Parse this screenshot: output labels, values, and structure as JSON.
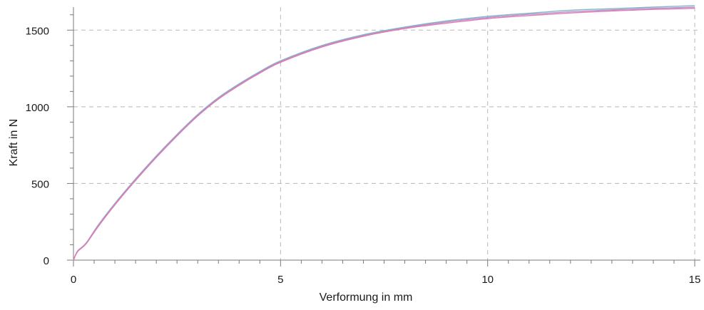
{
  "chart_data": {
    "type": "line",
    "title": "",
    "xlabel": "Verformung in mm",
    "ylabel": "Kraft in N",
    "xlim": [
      0,
      15
    ],
    "ylim": [
      0,
      1650
    ],
    "x_ticks": [
      0,
      5,
      10,
      15
    ],
    "x_tick_labels": [
      "0",
      "5",
      "10",
      "15"
    ],
    "y_ticks": [
      0,
      500,
      1000,
      1500
    ],
    "y_tick_labels": [
      "0",
      "500",
      "1000",
      "1500"
    ],
    "grid": true,
    "legend": "none",
    "series": [
      {
        "color": "#7fb8c4",
        "x": [
          0,
          0.1,
          0.3,
          0.6,
          1.0,
          1.5,
          2.0,
          2.5,
          3.0,
          3.5,
          4.0,
          4.5,
          5.0,
          6.0,
          7.0,
          8.0,
          9.0,
          10.0,
          11.0,
          12.0,
          13.0,
          14.0,
          15.0
        ],
        "values": [
          0,
          60,
          110,
          230,
          370,
          530,
          680,
          820,
          950,
          1060,
          1150,
          1230,
          1300,
          1400,
          1470,
          1520,
          1560,
          1590,
          1610,
          1630,
          1640,
          1650,
          1660
        ]
      },
      {
        "color": "#b98fd0",
        "x": [
          0,
          0.1,
          0.3,
          0.6,
          1.0,
          1.5,
          2.0,
          2.5,
          3.0,
          3.5,
          4.0,
          4.5,
          5.0,
          6.0,
          7.0,
          8.0,
          9.0,
          10.0,
          11.0,
          12.0,
          13.0,
          14.0,
          15.0
        ],
        "values": [
          0,
          58,
          108,
          225,
          365,
          525,
          675,
          815,
          945,
          1055,
          1145,
          1225,
          1295,
          1395,
          1465,
          1515,
          1553,
          1582,
          1603,
          1620,
          1632,
          1642,
          1650
        ]
      },
      {
        "color": "#e07ab0",
        "x": [
          0,
          0.1,
          0.3,
          0.6,
          1.0,
          1.5,
          2.0,
          2.5,
          3.0,
          3.5,
          4.0,
          4.5,
          5.0,
          6.0,
          7.0,
          8.0,
          9.0,
          10.0,
          11.0,
          12.0,
          13.0,
          14.0,
          15.0
        ],
        "values": [
          0,
          55,
          105,
          220,
          360,
          520,
          670,
          810,
          940,
          1050,
          1140,
          1220,
          1290,
          1390,
          1460,
          1510,
          1545,
          1575,
          1595,
          1612,
          1625,
          1635,
          1642
        ]
      }
    ]
  }
}
